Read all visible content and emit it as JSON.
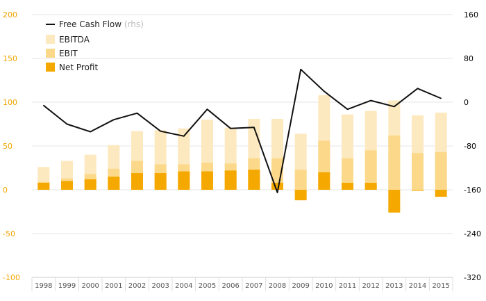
{
  "chart_data": {
    "type": "bar",
    "categories": [
      "1998",
      "1999",
      "2000",
      "2001",
      "2002",
      "2003",
      "2004",
      "2005",
      "2006",
      "2007",
      "2008",
      "2009",
      "2010",
      "2011",
      "2012",
      "2013",
      "2014",
      "2015"
    ],
    "series": [
      {
        "name": "EBITDA",
        "axis": "left",
        "color": "#fde9bf",
        "values": [
          26,
          33,
          40,
          51,
          67,
          68,
          70,
          80,
          71,
          81,
          81,
          64,
          108,
          86,
          90,
          102,
          85,
          88
        ]
      },
      {
        "name": "EBIT",
        "axis": "left",
        "color": "#fcd98a",
        "values": [
          9,
          13,
          18,
          24,
          33,
          29,
          29,
          31,
          30,
          36,
          36,
          23,
          56,
          36,
          45,
          62,
          42,
          43
        ]
      },
      {
        "name": "Net Profit",
        "axis": "left",
        "color": "#f5a800",
        "values": [
          8,
          10,
          12,
          15,
          19,
          19,
          21,
          21,
          22,
          23,
          8,
          -12,
          20,
          8,
          8,
          -26,
          -1,
          -8
        ]
      },
      {
        "name": "Free Cash Flow",
        "name_suffix": "(rhs)",
        "axis": "right",
        "type": "line",
        "color": "#111111",
        "values": [
          -6,
          -40,
          -54,
          -32,
          -20,
          -53,
          -62,
          -13,
          -48,
          -46,
          -165,
          60,
          20,
          -13,
          3,
          -8,
          25,
          7
        ]
      }
    ],
    "y_left": {
      "ylim": [
        -100,
        200
      ],
      "ticks": [
        "200",
        "150",
        "100",
        "50",
        "0",
        "-50",
        "-100"
      ],
      "tick_values": [
        200,
        150,
        100,
        50,
        0,
        -50,
        -100
      ],
      "color": "#f0a500"
    },
    "y_right": {
      "ylim": [
        -320,
        160
      ],
      "ticks": [
        "160",
        "80",
        "0",
        "-80",
        "-160",
        "-240",
        "-320"
      ],
      "tick_values": [
        160,
        80,
        0,
        -80,
        -160,
        -240,
        -320
      ],
      "color": "#000000"
    },
    "grid": true,
    "legend_placement": "top-left"
  }
}
